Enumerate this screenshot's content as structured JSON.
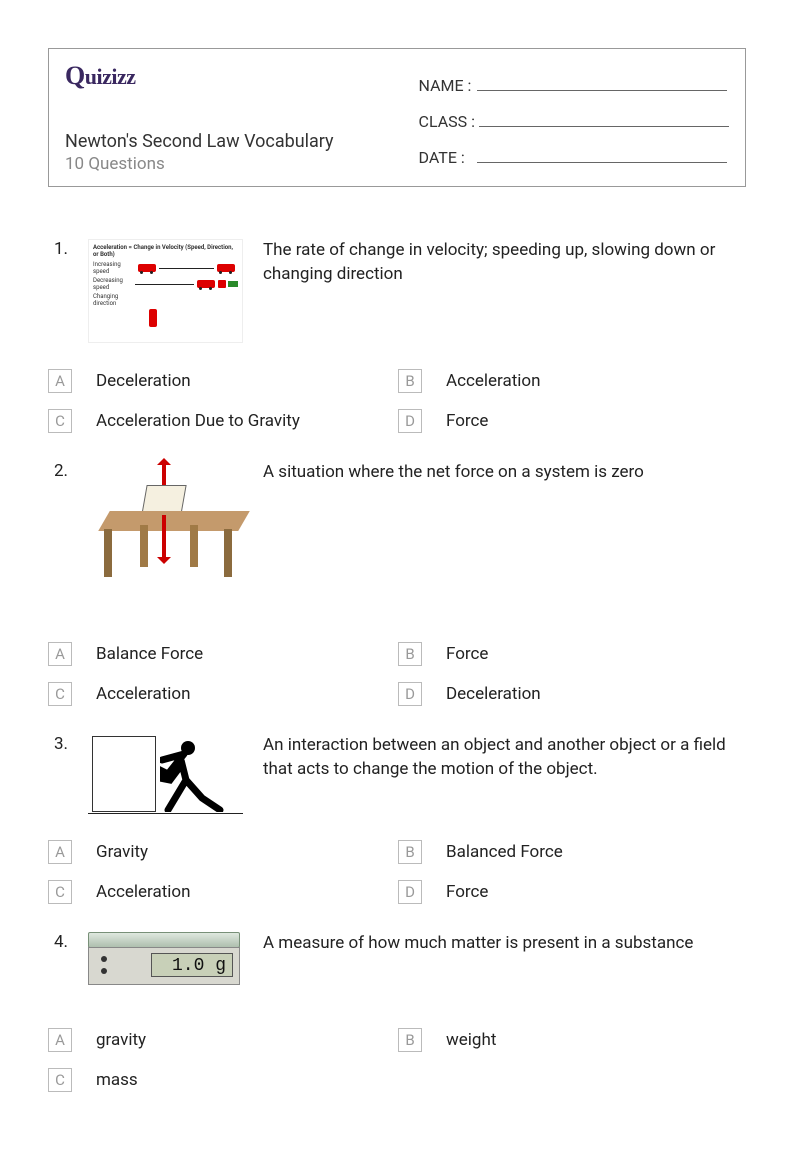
{
  "brand": "Quizizz",
  "quiz_title": "Newton's Second Law Vocabulary",
  "question_count": "10 Questions",
  "fields": {
    "name": "NAME :",
    "class": "CLASS :",
    "date": "DATE  :"
  },
  "questions": [
    {
      "num": "1.",
      "text": "The rate of change in velocity; speeding up, slowing down or changing direction",
      "image": "accel",
      "choices": [
        {
          "l": "A",
          "t": "Deceleration"
        },
        {
          "l": "B",
          "t": "Acceleration"
        },
        {
          "l": "C",
          "t": "Acceleration Due to Gravity"
        },
        {
          "l": "D",
          "t": "Force"
        }
      ]
    },
    {
      "num": "2.",
      "text": "A situation where the net force on a system is zero",
      "image": "table",
      "choices": [
        {
          "l": "A",
          "t": "Balance Force"
        },
        {
          "l": "B",
          "t": "Force"
        },
        {
          "l": "C",
          "t": "Acceleration"
        },
        {
          "l": "D",
          "t": "Deceleration"
        }
      ]
    },
    {
      "num": "3.",
      "text": "An interaction between an object and another object or a field that acts to change the motion of the object.",
      "image": "push",
      "choices": [
        {
          "l": "A",
          "t": "Gravity"
        },
        {
          "l": "B",
          "t": "Balanced Force"
        },
        {
          "l": "C",
          "t": "Acceleration"
        },
        {
          "l": "D",
          "t": "Force"
        }
      ]
    },
    {
      "num": "4.",
      "text": "A measure of how much matter is present in a substance",
      "image": "scale",
      "choices": [
        {
          "l": "A",
          "t": "gravity"
        },
        {
          "l": "B",
          "t": "weight"
        },
        {
          "l": "C",
          "t": "mass"
        }
      ]
    }
  ],
  "img_labels": {
    "accel_header": "Acceleration = Change in Velocity (Speed, Direction, or Both)",
    "inc": "Increasing speed",
    "dec": "Decreasing speed",
    "chg": "Changing direction",
    "scale_reading": "1.0 g"
  },
  "colors": {
    "logo": "#3a2860",
    "border": "#999999",
    "muted": "#888888",
    "letter_border": "#bbbbbb",
    "car": "#dd0000",
    "wood": "#c49a6c"
  }
}
